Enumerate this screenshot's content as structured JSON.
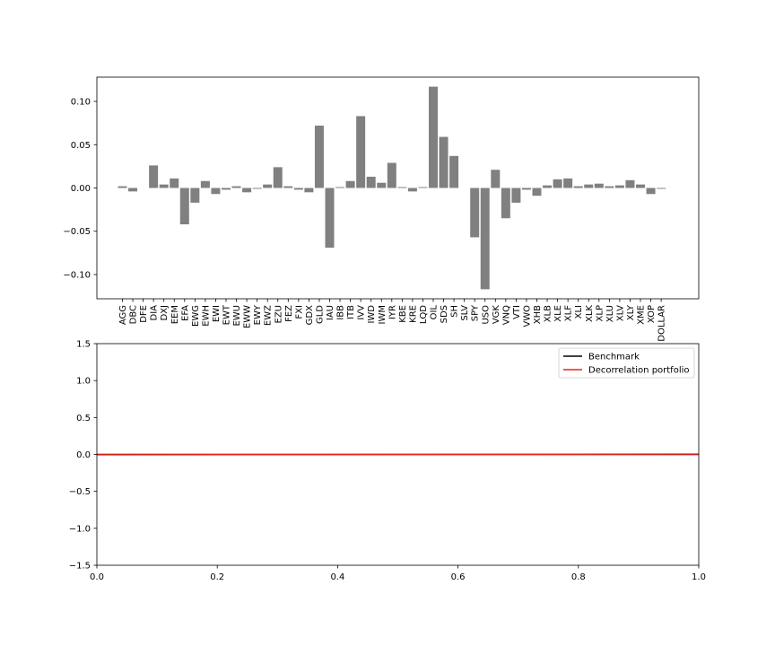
{
  "chart_data": [
    {
      "type": "bar",
      "title": "",
      "xlabel": "",
      "ylabel": "",
      "ylim": [
        -0.128,
        0.128
      ],
      "yticks": [
        -0.1,
        -0.05,
        0.0,
        0.05,
        0.1
      ],
      "ytick_labels": [
        "−0.10",
        "−0.05",
        "0.00",
        "0.05",
        "0.10"
      ],
      "bar_color": "#808080",
      "categories": [
        "AGG",
        "DBC",
        "DFE",
        "DIA",
        "DXJ",
        "EEM",
        "EFA",
        "EWG",
        "EWH",
        "EWI",
        "EWT",
        "EWU",
        "EWW",
        "EWY",
        "EWZ",
        "EZU",
        "FEZ",
        "FXI",
        "GDX",
        "GLD",
        "IAU",
        "IBB",
        "ITB",
        "IVV",
        "IWD",
        "IWM",
        "IYR",
        "KBE",
        "KRE",
        "LQD",
        "OIL",
        "SDS",
        "SH",
        "SLV",
        "SPY",
        "USO",
        "VGK",
        "VNQ",
        "VTI",
        "VWO",
        "XHB",
        "XLB",
        "XLE",
        "XLF",
        "XLI",
        "XLK",
        "XLP",
        "XLU",
        "XLV",
        "XLY",
        "XME",
        "XOP",
        "DOLLAR"
      ],
      "values": [
        0.002,
        -0.004,
        0.0,
        0.026,
        0.004,
        0.011,
        -0.042,
        -0.017,
        0.008,
        -0.007,
        -0.002,
        0.002,
        -0.005,
        -0.001,
        0.004,
        0.024,
        0.002,
        -0.002,
        -0.005,
        0.072,
        -0.069,
        0.001,
        0.008,
        0.083,
        0.013,
        0.006,
        0.029,
        0.001,
        -0.004,
        0.001,
        0.117,
        0.059,
        0.037,
        0.0,
        -0.057,
        -0.117,
        0.021,
        -0.035,
        -0.017,
        -0.002,
        -0.009,
        0.003,
        0.01,
        0.011,
        0.002,
        0.004,
        0.005,
        0.002,
        0.003,
        0.009,
        0.004,
        -0.007,
        -0.001
      ]
    },
    {
      "type": "line",
      "title": "",
      "xlabel": "",
      "ylabel": "",
      "xlim": [
        0.0,
        1.0
      ],
      "ylim": [
        -1.5,
        1.5
      ],
      "xticks": [
        0.0,
        0.2,
        0.4,
        0.6,
        0.8,
        1.0
      ],
      "xtick_labels": [
        "0.0",
        "0.2",
        "0.4",
        "0.6",
        "0.8",
        "1.0"
      ],
      "yticks": [
        -1.5,
        -1.0,
        -0.5,
        0.0,
        0.5,
        1.0,
        1.5
      ],
      "ytick_labels": [
        "−1.5",
        "−1.0",
        "−0.5",
        "0.0",
        "0.5",
        "1.0",
        "1.5"
      ],
      "legend_position": "top-right",
      "series": [
        {
          "name": "Benchmark",
          "color": "#000000",
          "x": [
            0.0,
            1.0
          ],
          "y": [
            0.0,
            0.0
          ]
        },
        {
          "name": "Decorrelation portfolio",
          "color": "#e8261c",
          "x": [
            0.0,
            1.0
          ],
          "y": [
            -0.005,
            0.005
          ]
        }
      ]
    }
  ]
}
